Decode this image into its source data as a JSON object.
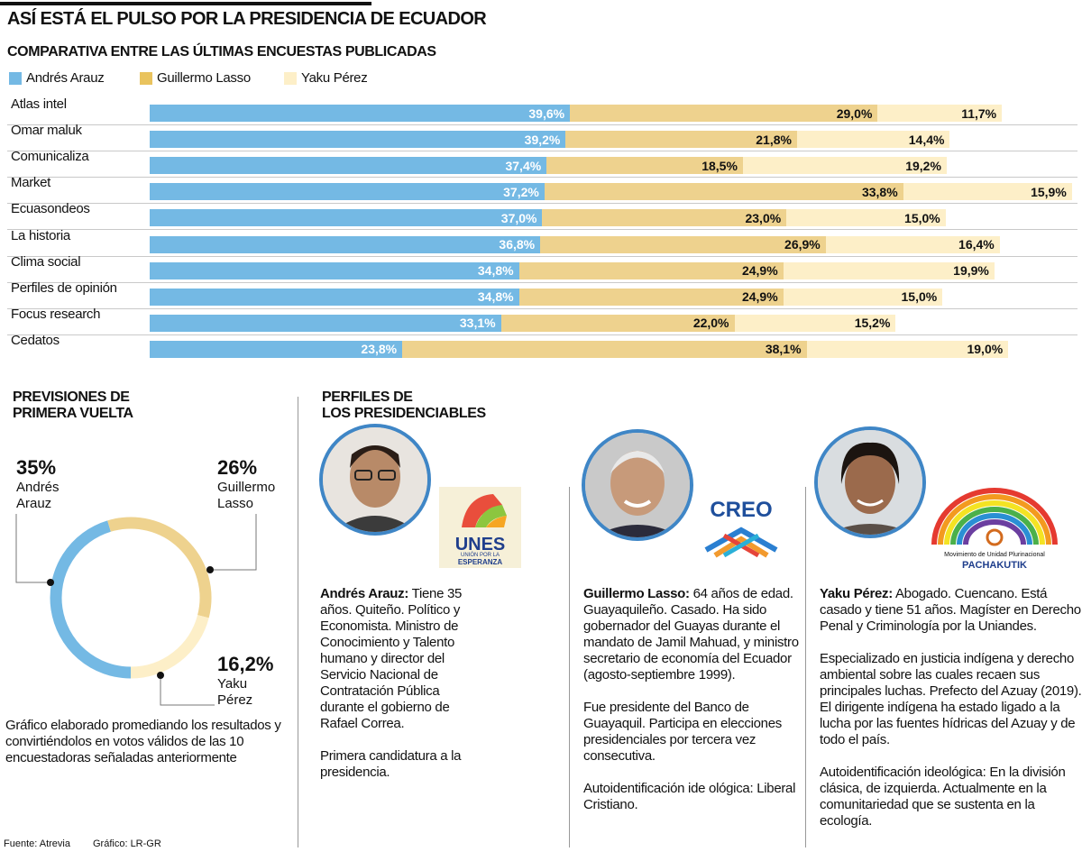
{
  "title": "ASÍ ESTÁ EL PULSO POR LA PRESIDENCIA DE ECUADOR",
  "colors": {
    "arauz": "#74b9e4",
    "lasso": "#eed28e",
    "perez": "#fdefc8",
    "legend_lasso": "#e9c35e",
    "photo_border": "#3f86c6"
  },
  "chart_data": [
    {
      "type": "bar",
      "stacked": true,
      "orientation": "horizontal",
      "title": "COMPARATIVA ENTRE LAS ÚLTIMAS ENCUESTAS PUBLICADAS",
      "legend": [
        "Andrés Arauz",
        "Guillermo Lasso",
        "Yaku Pérez"
      ],
      "legend_placement": "top",
      "categories": [
        "Atlas intel",
        "Omar maluk",
        "Comunicaliza",
        "Market",
        "Ecuasondeos",
        "La historia",
        "Clima social",
        "Perfiles de opinión",
        "Focus research",
        "Cedatos"
      ],
      "series": [
        {
          "name": "Andrés Arauz",
          "values": [
            39.6,
            39.2,
            37.4,
            37.2,
            37.0,
            36.8,
            34.8,
            34.8,
            33.1,
            23.8
          ],
          "labels": [
            "39,6%",
            "39,2%",
            "37,4%",
            "37,2%",
            "37,0%",
            "36,8%",
            "34,8%",
            "34,8%",
            "33,1%",
            "23,8%"
          ]
        },
        {
          "name": "Guillermo Lasso",
          "values": [
            29.0,
            21.8,
            18.5,
            33.8,
            23.0,
            26.9,
            24.9,
            24.9,
            22.0,
            38.1
          ],
          "labels": [
            "29,0%",
            "21,8%",
            "18,5%",
            "33,8%",
            "23,0%",
            "26,9%",
            "24,9%",
            "24,9%",
            "22,0%",
            "38,1%"
          ]
        },
        {
          "name": "Yaku Pérez",
          "values": [
            11.7,
            14.4,
            19.2,
            15.9,
            15.0,
            16.4,
            19.9,
            15.0,
            15.2,
            19.0
          ],
          "labels": [
            "11,7%",
            "14,4%",
            "19,2%",
            "15,9%",
            "15,0%",
            "16,4%",
            "19,9%",
            "15,0%",
            "15,2%",
            "19,0%"
          ]
        }
      ]
    },
    {
      "type": "pie",
      "donut": true,
      "title": "PREVISIONES DE PRIMERA VUELTA",
      "slices": [
        {
          "name_line1": "Andrés",
          "name_line2": "Arauz",
          "value": 35,
          "label": "35%"
        },
        {
          "name_line1": "Guillermo",
          "name_line2": "Lasso",
          "value": 26,
          "label": "26%"
        },
        {
          "name_line1": "Yaku",
          "name_line2": "Pérez",
          "value": 16.2,
          "label": "16,2%"
        }
      ]
    }
  ],
  "note": "Gráfico elaborado promediando los resultados y convirtiéndolos en votos válidos de las 10 encuestadoras señaladas anteriormente",
  "footer": {
    "source": "Fuente: Atrevia",
    "graphic": "Gráfico: LR-GR"
  },
  "profiles": {
    "title_line1": "PERFILES DE",
    "title_line2": "LOS PRESIDENCIABLES",
    "items": [
      {
        "name": "Andrés Arauz:",
        "logo": "UNES",
        "logo_sub": "UNIÓN POR LA",
        "logo_sub2": "ESPERANZA",
        "paragraphs": [
          " Tiene 35 años. Quiteño. Político y Economista. Ministro de Conocimiento y Talento humano y director del Servicio Nacional de Contratación Pública durante el gobierno de Rafael Correa.",
          "Primera candidatura a la presidencia."
        ]
      },
      {
        "name": "Guillermo Lasso:",
        "logo": "CREO",
        "paragraphs": [
          " 64 años de edad. Guayaquileño. Casado. Ha sido gobernador del Guayas durante el mandato de Jamil Mahuad, y ministro secretario de economía del Ecuador (agosto-septiembre 1999).",
          "Fue presidente del Banco de Guayaquil. Participa en elecciones presidenciales por tercera vez consecutiva.",
          "Autoidentificación ide ológica: Liberal Cristiano."
        ]
      },
      {
        "name": "Yaku Pérez:",
        "logo": "PACHAKUTIK",
        "logo_sub": "Movimiento de Unidad Plurinacional",
        "paragraphs": [
          " Abogado. Cuencano. Está casado y tiene 51 años. Magíster en Derecho Penal y Criminología por la Uniandes.",
          "Especializado en justicia indígena y derecho ambiental sobre las cuales recaen sus principales luchas. Prefecto del Azuay (2019). El dirigente indígena ha estado ligado a la lucha por las fuentes hídricas del Azuay y de todo el país.",
          "Autoidentificación ideológica: En la división clásica, de izquierda. Actualmente en la comunitariedad que se sustenta en la ecología."
        ]
      }
    ]
  }
}
